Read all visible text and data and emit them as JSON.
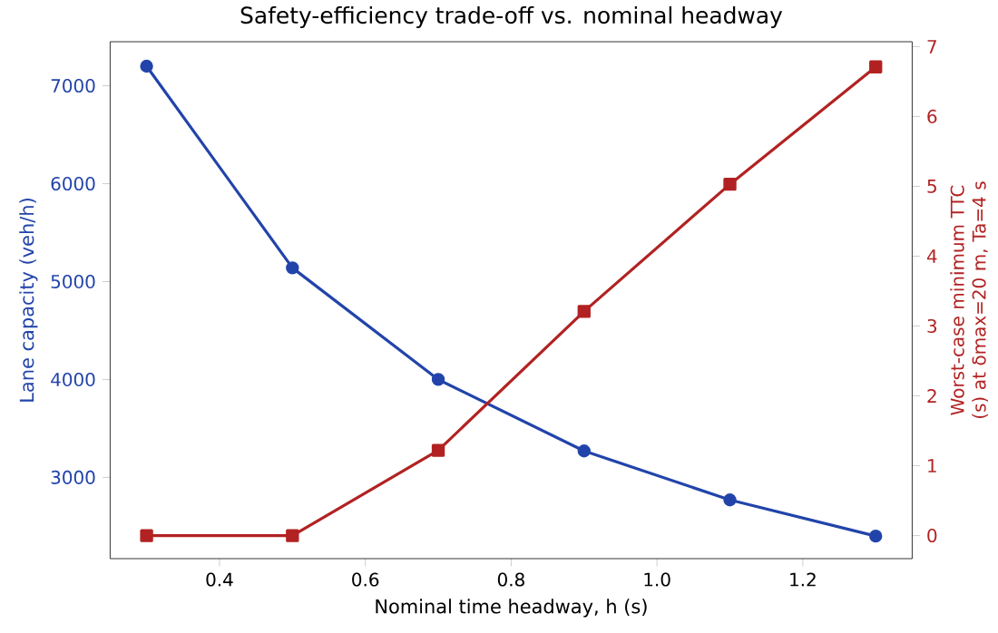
{
  "chart_data": {
    "type": "line",
    "title": "Safety-efficiency trade-off vs. nominal headway",
    "xlabel": "Nominal time headway, h (s)",
    "ylabel": "Lane capacity (veh/h)",
    "y2label": "Worst-case minimum TTC (s) at δmax=20 m, Ta=4 s",
    "x": [
      0.3,
      0.5,
      0.7,
      0.9,
      1.1,
      1.3
    ],
    "series": [
      {
        "color": "#2244aa",
        "values": [
          7200,
          5140,
          4000,
          3270,
          2770,
          2400
        ],
        "marker": "circle"
      },
      {
        "color": "#b22222",
        "values": [
          0,
          0,
          1.22,
          3.21,
          5.03,
          6.71
        ],
        "marker": "square",
        "axis": "y2"
      }
    ],
    "xlim": [
      0.25,
      1.35
    ],
    "xticks": [
      {
        "value": 0.4,
        "label": "0.4"
      },
      {
        "value": 0.6,
        "label": "0.6"
      },
      {
        "value": 0.8,
        "label": "0.8"
      },
      {
        "value": 1.0,
        "label": "1.0"
      },
      {
        "value": 1.2,
        "label": "1.2"
      }
    ],
    "ylim": [
      2170,
      7450
    ],
    "yticks": [
      3000,
      4000,
      5000,
      6000,
      7000
    ],
    "y2lim": [
      -0.33,
      7.07
    ],
    "y2ticks": [
      0,
      1,
      2,
      3,
      4,
      5,
      6,
      7
    ],
    "grid": false,
    "line_style": "solid"
  }
}
